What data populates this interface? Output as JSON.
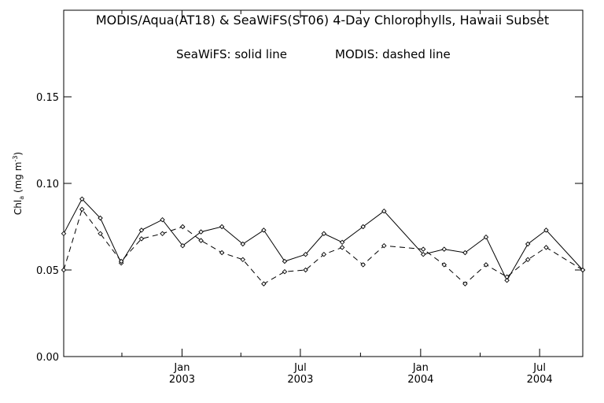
{
  "chart_data": {
    "type": "line",
    "title": "MODIS/Aqua(AT18) & SeaWiFS(ST06) 4-Day Chlorophylls, Hawaii Subset",
    "annotations": [
      "SeaWiFS: solid line",
      "MODIS: dashed line"
    ],
    "ylabel": {
      "base": "Chl",
      "subscript": "a",
      "middle": " (mg m",
      "superscript": "-3",
      "end": ")"
    },
    "ylim": [
      0.0,
      0.2
    ],
    "yticks": [
      {
        "value": 0.0,
        "label": "0.00"
      },
      {
        "value": 0.05,
        "label": "0.05"
      },
      {
        "value": 0.1,
        "label": "0.10"
      },
      {
        "value": 0.15,
        "label": "0.15"
      }
    ],
    "xlim": [
      "2002-07-04",
      "2004-09-05"
    ],
    "xticks": [
      {
        "date": "2003-01-01",
        "month": "Jan",
        "year": "2003"
      },
      {
        "date": "2003-07-01",
        "month": "Jul",
        "year": "2003"
      },
      {
        "date": "2004-01-01",
        "month": "Jan",
        "year": "2004"
      },
      {
        "date": "2004-07-01",
        "month": "Jul",
        "year": "2004"
      }
    ],
    "xminor_ticks": [
      "2002-10-01",
      "2003-04-01",
      "2003-10-01",
      "2004-04-01"
    ],
    "grid": false,
    "series": [
      {
        "name": "SeaWiFS",
        "line_style": "solid",
        "color": "#000000",
        "points": [
          {
            "x": "2002-07-04",
            "y": 0.071
          },
          {
            "x": "2002-08-01",
            "y": 0.091
          },
          {
            "x": "2002-08-29",
            "y": 0.08
          },
          {
            "x": "2002-09-30",
            "y": 0.054
          },
          {
            "x": "2002-10-31",
            "y": 0.073
          },
          {
            "x": "2002-12-02",
            "y": 0.079
          },
          {
            "x": "2003-01-02",
            "y": 0.064
          },
          {
            "x": "2003-01-30",
            "y": 0.072
          },
          {
            "x": "2003-03-03",
            "y": 0.075
          },
          {
            "x": "2003-04-04",
            "y": 0.065
          },
          {
            "x": "2003-05-06",
            "y": 0.073
          },
          {
            "x": "2003-06-07",
            "y": 0.055
          },
          {
            "x": "2003-07-09",
            "y": 0.059
          },
          {
            "x": "2003-08-06",
            "y": 0.071
          },
          {
            "x": "2003-09-03",
            "y": 0.066
          },
          {
            "x": "2003-10-05",
            "y": 0.075
          },
          {
            "x": "2003-11-06",
            "y": 0.084
          },
          {
            "x": "2004-01-05",
            "y": 0.059
          },
          {
            "x": "2004-02-06",
            "y": 0.062
          },
          {
            "x": "2004-03-09",
            "y": 0.06
          },
          {
            "x": "2004-04-10",
            "y": 0.069
          },
          {
            "x": "2004-05-12",
            "y": 0.044
          },
          {
            "x": "2004-06-13",
            "y": 0.065
          },
          {
            "x": "2004-07-11",
            "y": 0.073
          },
          {
            "x": "2004-09-05",
            "y": 0.05
          }
        ]
      },
      {
        "name": "MODIS",
        "line_style": "dashed",
        "color": "#000000",
        "points": [
          {
            "x": "2002-07-04",
            "y": 0.05
          },
          {
            "x": "2002-08-01",
            "y": 0.085
          },
          {
            "x": "2002-08-29",
            "y": 0.071
          },
          {
            "x": "2002-09-30",
            "y": 0.055
          },
          {
            "x": "2002-10-31",
            "y": 0.068
          },
          {
            "x": "2002-12-02",
            "y": 0.071
          },
          {
            "x": "2003-01-02",
            "y": 0.075
          },
          {
            "x": "2003-01-30",
            "y": 0.067
          },
          {
            "x": "2003-03-03",
            "y": 0.06
          },
          {
            "x": "2003-04-04",
            "y": 0.056
          },
          {
            "x": "2003-05-06",
            "y": 0.042
          },
          {
            "x": "2003-06-07",
            "y": 0.049
          },
          {
            "x": "2003-07-09",
            "y": 0.05
          },
          {
            "x": "2003-08-06",
            "y": 0.059
          },
          {
            "x": "2003-09-03",
            "y": 0.063
          },
          {
            "x": "2003-10-05",
            "y": 0.053
          },
          {
            "x": "2003-11-06",
            "y": 0.064
          },
          {
            "x": "2004-01-05",
            "y": 0.062
          },
          {
            "x": "2004-02-06",
            "y": 0.053
          },
          {
            "x": "2004-03-09",
            "y": 0.042
          },
          {
            "x": "2004-04-10",
            "y": 0.053
          },
          {
            "x": "2004-05-12",
            "y": 0.046
          },
          {
            "x": "2004-06-13",
            "y": 0.056
          },
          {
            "x": "2004-07-11",
            "y": 0.063
          },
          {
            "x": "2004-09-05",
            "y": 0.05
          }
        ]
      }
    ]
  }
}
